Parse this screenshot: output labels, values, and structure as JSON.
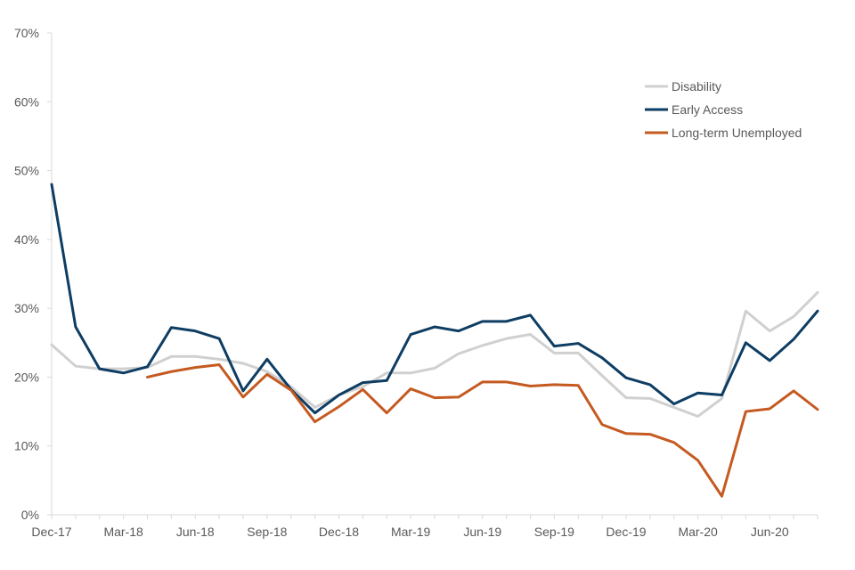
{
  "chart_data": {
    "type": "line",
    "title": "",
    "xlabel": "",
    "ylabel": "",
    "ylim": [
      0,
      70
    ],
    "ytick_values": [
      0,
      10,
      20,
      30,
      40,
      50,
      60,
      70
    ],
    "yticks": [
      "0%",
      "10%",
      "20%",
      "30%",
      "40%",
      "50%",
      "60%",
      "70%"
    ],
    "x": [
      "Dec-17",
      "Jan-18",
      "Feb-18",
      "Mar-18",
      "Apr-18",
      "May-18",
      "Jun-18",
      "Jul-18",
      "Aug-18",
      "Sep-18",
      "Oct-18",
      "Nov-18",
      "Dec-18",
      "Jan-19",
      "Feb-19",
      "Mar-19",
      "Apr-19",
      "May-19",
      "Jun-19",
      "Jul-19",
      "Aug-19",
      "Sep-19",
      "Oct-19",
      "Nov-19",
      "Dec-19",
      "Jan-20",
      "Feb-20",
      "Mar-20",
      "Apr-20",
      "May-20",
      "Jun-20",
      "Jul-20",
      "Aug-20"
    ],
    "xtick_labels": [
      "Dec-17",
      "Mar-18",
      "Jun-18",
      "Sep-18",
      "Dec-18",
      "Mar-19",
      "Jun-19",
      "Sep-19",
      "Dec-19",
      "Mar-20",
      "Jun-20"
    ],
    "grid": false,
    "legend_position": "top-right",
    "series": [
      {
        "name": "Disability",
        "color": "#d0d0d0",
        "values": [
          24.7,
          21.6,
          21.2,
          21.2,
          21.4,
          23.0,
          23.0,
          22.6,
          22.0,
          20.8,
          18.6,
          15.6,
          17.4,
          18.6,
          20.6,
          20.6,
          21.3,
          23.4,
          24.6,
          25.6,
          26.2,
          23.5,
          23.5,
          20.2,
          17.0,
          16.9,
          15.6,
          14.3,
          16.9,
          29.6,
          26.7,
          28.8,
          32.3
        ]
      },
      {
        "name": "Early Access",
        "color": "#0e3d63",
        "values": [
          48.0,
          27.3,
          21.2,
          20.6,
          21.5,
          27.2,
          26.7,
          25.6,
          18.0,
          22.6,
          18.2,
          14.8,
          17.4,
          19.2,
          19.5,
          26.2,
          27.3,
          26.7,
          28.1,
          28.1,
          29.0,
          24.5,
          24.9,
          22.8,
          19.9,
          18.9,
          16.1,
          17.7,
          17.4,
          25.0,
          22.4,
          25.5,
          29.6
        ]
      },
      {
        "name": "Long-term Unemployed",
        "color": "#c55a21",
        "values": [
          null,
          null,
          null,
          null,
          20.0,
          20.8,
          21.4,
          21.8,
          17.1,
          20.4,
          18.1,
          13.5,
          15.7,
          18.2,
          14.8,
          18.3,
          17.0,
          17.1,
          19.3,
          19.3,
          18.7,
          18.9,
          18.8,
          13.1,
          11.8,
          11.7,
          10.5,
          7.9,
          2.7,
          15.0,
          15.4,
          18.0,
          15.3
        ]
      }
    ]
  }
}
